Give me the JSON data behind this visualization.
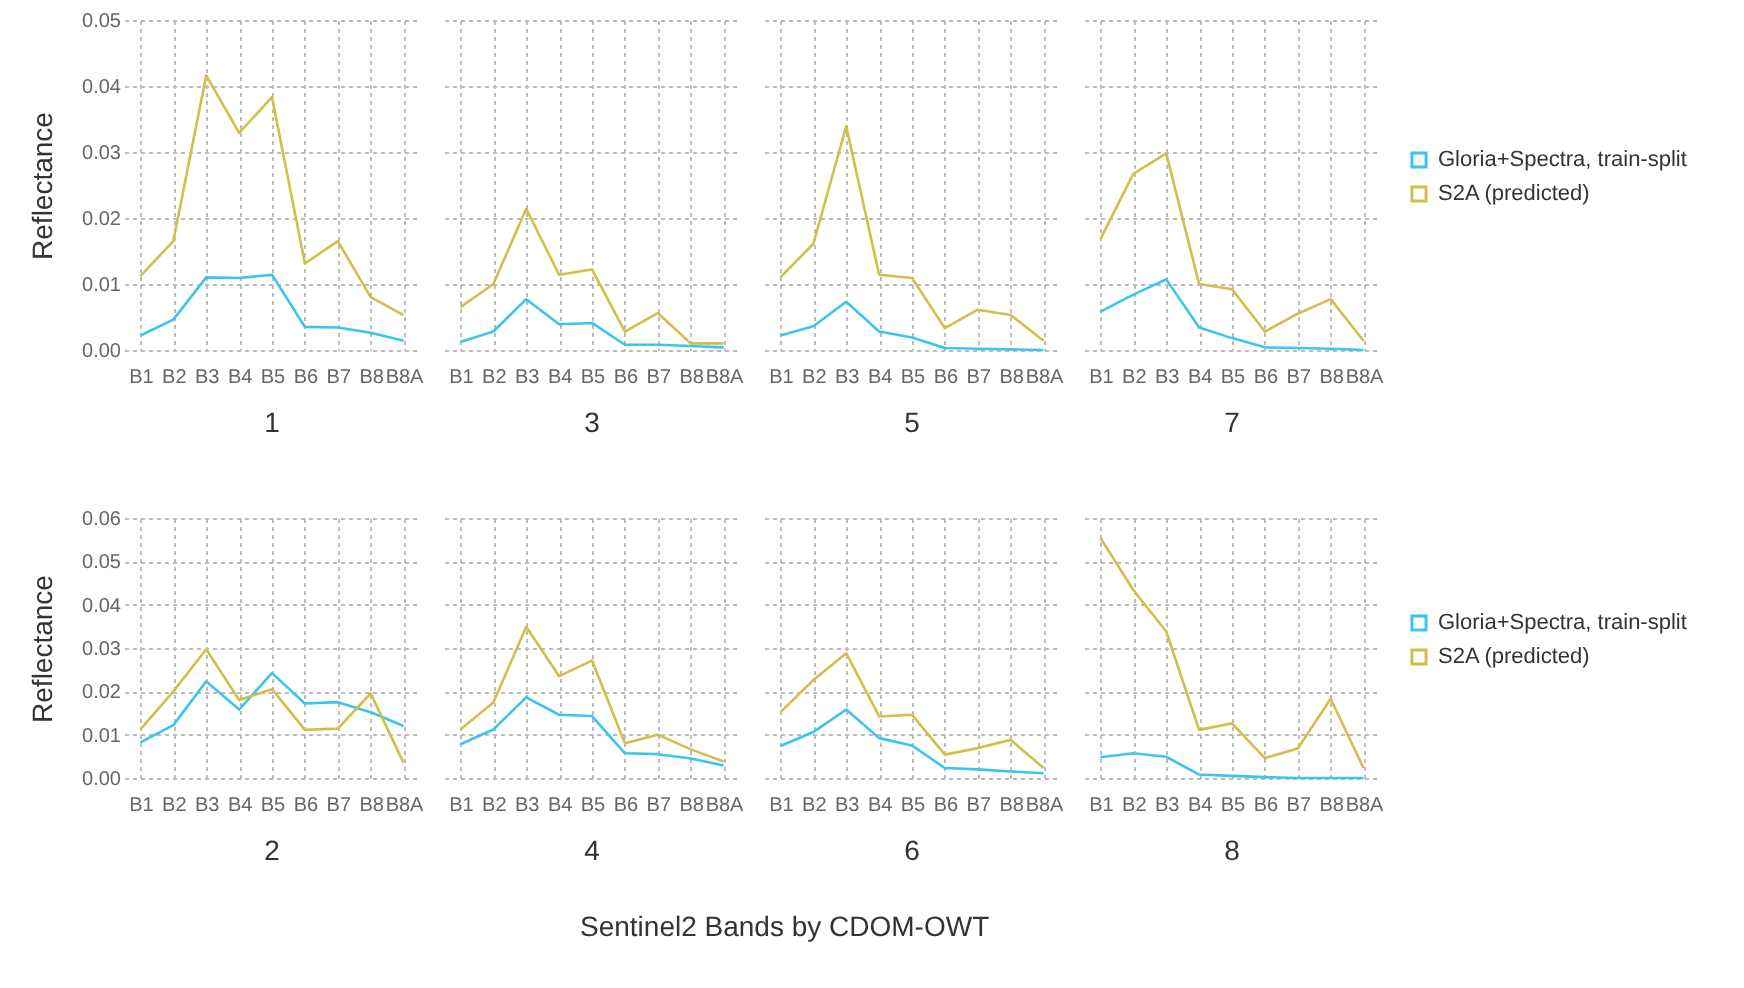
{
  "chart_data": [
    {
      "type": "line",
      "title": "1",
      "ylabel": "Reflectance",
      "categories": [
        "B1",
        "B2",
        "B3",
        "B4",
        "B5",
        "B6",
        "B7",
        "B8",
        "B8A"
      ],
      "ylim": [
        0,
        0.05
      ],
      "yticks": [
        {
          "value": 0,
          "label": "0.00"
        },
        0.01,
        0.02,
        0.03,
        0.04,
        0.05
      ],
      "grid": true,
      "series": [
        {
          "color": "#3cc4f0",
          "values": [
            0.0022,
            0.0046,
            0.011,
            0.0109,
            0.0114,
            0.0035,
            0.0034,
            0.0026,
            0.0014
          ]
        },
        {
          "color": "#cfc04a",
          "values": [
            0.0112,
            0.0165,
            0.0416,
            0.0329,
            0.0383,
            0.0131,
            0.0165,
            0.008,
            0.0053
          ]
        }
      ]
    },
    {
      "type": "line",
      "title": "3",
      "categories": [
        "B1",
        "B2",
        "B3",
        "B4",
        "B5",
        "B6",
        "B7",
        "B8",
        "B8A"
      ],
      "ylim": [
        0,
        0.05
      ],
      "yticks": [
        0,
        0.01,
        0.02,
        0.03,
        0.04,
        0.05
      ],
      "grid": true,
      "tick_labels": "x",
      "series": [
        {
          "color": "#3cc4f0",
          "values": [
            0.0012,
            0.0028,
            0.0077,
            0.0039,
            0.0041,
            0.0008,
            0.0008,
            0.0006,
            0.0004
          ]
        },
        {
          "color": "#cfc04a",
          "values": [
            0.0065,
            0.01,
            0.0214,
            0.0114,
            0.0122,
            0.0028,
            0.0056,
            0.001,
            0.001
          ]
        }
      ]
    },
    {
      "type": "line",
      "title": "5",
      "categories": [
        "B1",
        "B2",
        "B3",
        "B4",
        "B5",
        "B6",
        "B7",
        "B8",
        "B8A"
      ],
      "ylim": [
        0,
        0.05
      ],
      "yticks": [
        0,
        0.01,
        0.02,
        0.03,
        0.04,
        0.05
      ],
      "grid": true,
      "tick_labels": "x",
      "series": [
        {
          "color": "#3cc4f0",
          "values": [
            0.0022,
            0.0036,
            0.0073,
            0.0028,
            0.0019,
            0.0003,
            0.0002,
            0.0001,
            0
          ]
        },
        {
          "color": "#cfc04a",
          "values": [
            0.011,
            0.0161,
            0.0339,
            0.0114,
            0.0109,
            0.0033,
            0.0061,
            0.0053,
            0.0014
          ]
        }
      ]
    },
    {
      "type": "line",
      "title": "7",
      "categories": [
        "B1",
        "B2",
        "B3",
        "B4",
        "B5",
        "B6",
        "B7",
        "B8",
        "B8A"
      ],
      "ylim": [
        0,
        0.05
      ],
      "yticks": [
        0,
        0.01,
        0.02,
        0.03,
        0.04,
        0.05
      ],
      "grid": true,
      "legend": "right",
      "tick_labels": "x",
      "series": [
        {
          "name": "Gloria+Spectra, train-split",
          "color": "#3cc4f0",
          "values": [
            0.0058,
            0.0084,
            0.0107,
            0.0034,
            0.0018,
            0.0004,
            0.0003,
            0.0002,
            0
          ]
        },
        {
          "name": "S2A (predicted)",
          "color": "#cfc04a",
          "values": [
            0.0168,
            0.0267,
            0.0298,
            0.01,
            0.0092,
            0.0028,
            0.0055,
            0.0077,
            0.0014
          ]
        }
      ]
    },
    {
      "type": "line",
      "title": "2",
      "ylabel": "Reflectance",
      "categories": [
        "B1",
        "B2",
        "B3",
        "B4",
        "B5",
        "B6",
        "B7",
        "B8",
        "B8A"
      ],
      "ylim": [
        0,
        0.06
      ],
      "yticks": [
        {
          "value": 0,
          "label": "0.00"
        },
        0.01,
        0.02,
        0.03,
        0.04,
        0.05,
        0.06
      ],
      "grid": true,
      "series": [
        {
          "color": "#3cc4f0",
          "values": [
            0.0082,
            0.0122,
            0.0223,
            0.0158,
            0.0242,
            0.0172,
            0.0175,
            0.0152,
            0.012
          ]
        },
        {
          "color": "#cfc04a",
          "values": [
            0.0112,
            0.02,
            0.0297,
            0.018,
            0.0205,
            0.0111,
            0.0114,
            0.0195,
            0.0035
          ]
        }
      ]
    },
    {
      "type": "line",
      "title": "4",
      "xlabel": "Sentinel2 Bands by CDOM-OWT",
      "categories": [
        "B1",
        "B2",
        "B3",
        "B4",
        "B5",
        "B6",
        "B7",
        "B8",
        "B8A"
      ],
      "ylim": [
        0,
        0.06
      ],
      "yticks": [
        0,
        0.01,
        0.02,
        0.03,
        0.04,
        0.05,
        0.06
      ],
      "grid": true,
      "tick_labels": "x",
      "series": [
        {
          "color": "#3cc4f0",
          "values": [
            0.0078,
            0.0112,
            0.0186,
            0.0146,
            0.0143,
            0.0057,
            0.0055,
            0.0045,
            0.0029
          ]
        },
        {
          "color": "#cfc04a",
          "values": [
            0.0112,
            0.0174,
            0.0349,
            0.0235,
            0.0271,
            0.008,
            0.01,
            0.0066,
            0.0038
          ]
        }
      ]
    },
    {
      "type": "line",
      "title": "6",
      "categories": [
        "B1",
        "B2",
        "B3",
        "B4",
        "B5",
        "B6",
        "B7",
        "B8",
        "B8A"
      ],
      "ylim": [
        0,
        0.06
      ],
      "yticks": [
        0,
        0.01,
        0.02,
        0.03,
        0.04,
        0.05,
        0.06
      ],
      "grid": true,
      "tick_labels": "x",
      "series": [
        {
          "color": "#3cc4f0",
          "values": [
            0.0074,
            0.0106,
            0.0158,
            0.0092,
            0.0075,
            0.0023,
            0.002,
            0.0015,
            0.0011
          ]
        },
        {
          "color": "#cfc04a",
          "values": [
            0.0152,
            0.0226,
            0.0288,
            0.0142,
            0.0146,
            0.0054,
            0.0069,
            0.0088,
            0.0023
          ]
        }
      ]
    },
    {
      "type": "line",
      "title": "8",
      "categories": [
        "B1",
        "B2",
        "B3",
        "B4",
        "B5",
        "B6",
        "B7",
        "B8",
        "B8A"
      ],
      "ylim": [
        0,
        0.06
      ],
      "yticks": [
        0,
        0.01,
        0.02,
        0.03,
        0.04,
        0.05,
        0.06
      ],
      "grid": true,
      "legend": "right",
      "tick_labels": "x",
      "series": [
        {
          "name": "Gloria+Spectra, train-split",
          "color": "#3cc4f0",
          "values": [
            0.0048,
            0.0057,
            0.0049,
            0.0008,
            0.0005,
            0.0002,
            0,
            0,
            0
          ]
        },
        {
          "name": "S2A (predicted)",
          "color": "#cfc04a",
          "values": [
            0.0554,
            0.0434,
            0.0338,
            0.0111,
            0.0126,
            0.0046,
            0.0068,
            0.0183,
            0.0023
          ]
        }
      ]
    }
  ]
}
